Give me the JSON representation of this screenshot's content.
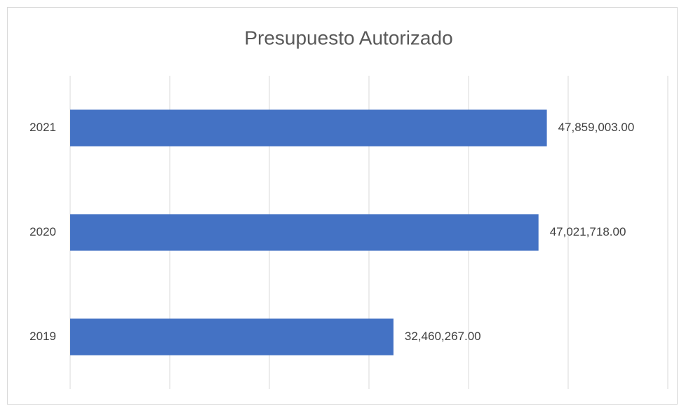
{
  "chart_data": {
    "type": "bar",
    "orientation": "horizontal",
    "title": "Presupuesto Autorizado",
    "categories": [
      "2021",
      "2020",
      "2019"
    ],
    "values": [
      47859003,
      47021718,
      32460267
    ],
    "value_labels": [
      "47,859,003.00",
      "47,021,718.00",
      "32,460,267.00"
    ],
    "color": "#4472c4",
    "xlim": [
      0,
      60000000
    ],
    "xticks": [
      0,
      10000000,
      20000000,
      30000000,
      40000000,
      50000000,
      60000000
    ],
    "grid": true
  }
}
